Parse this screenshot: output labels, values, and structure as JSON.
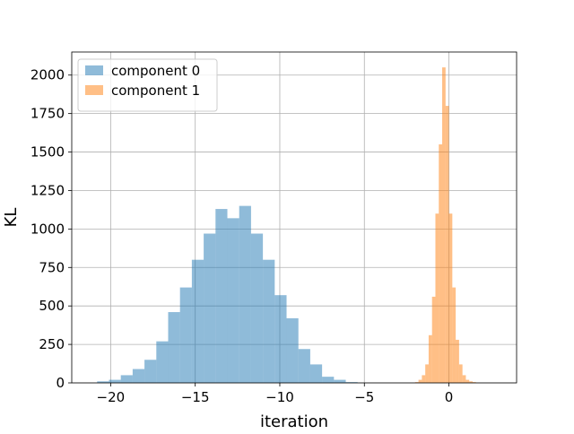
{
  "chart_data": {
    "type": "histogram",
    "title": "",
    "xlabel": "iteration",
    "ylabel": "KL",
    "xlim": [
      -22.3,
      4.0
    ],
    "ylim": [
      0,
      2150
    ],
    "xticks": [
      -20,
      -15,
      -10,
      -5,
      0
    ],
    "xtick_labels": [
      "−20",
      "−15",
      "−10",
      "−5",
      "0"
    ],
    "yticks": [
      0,
      250,
      500,
      750,
      1000,
      1250,
      1500,
      1750,
      2000
    ],
    "ytick_labels": [
      "0",
      "250",
      "500",
      "750",
      "1000",
      "1250",
      "1500",
      "1750",
      "2000"
    ],
    "grid": true,
    "legend_position": "top-left",
    "series": [
      {
        "name": "component 0",
        "color": "#1f77b4",
        "alpha": 0.5,
        "bin_width": 0.7,
        "bins_start": [
          -20.8,
          -20.1,
          -19.4,
          -18.7,
          -18.0,
          -17.3,
          -16.6,
          -15.9,
          -15.2,
          -14.5,
          -13.8,
          -13.1,
          -12.4,
          -11.7,
          -11.0,
          -10.3,
          -9.6,
          -8.9,
          -8.2,
          -7.5,
          -6.8,
          -6.1
        ],
        "counts": [
          10,
          20,
          50,
          90,
          150,
          270,
          460,
          620,
          800,
          970,
          1130,
          1070,
          1150,
          970,
          800,
          570,
          420,
          220,
          120,
          40,
          20,
          5
        ]
      },
      {
        "name": "component 1",
        "color": "#ff7f0e",
        "alpha": 0.5,
        "bin_width": 0.2,
        "bins_start": [
          -2.0,
          -1.8,
          -1.6,
          -1.4,
          -1.2,
          -1.0,
          -0.8,
          -0.6,
          -0.4,
          -0.2,
          0.0,
          0.2,
          0.4,
          0.6,
          0.8,
          1.0,
          1.2,
          1.4
        ],
        "counts": [
          5,
          20,
          50,
          120,
          310,
          560,
          1100,
          1550,
          2050,
          1800,
          1100,
          620,
          280,
          120,
          50,
          20,
          10,
          5
        ]
      }
    ]
  }
}
